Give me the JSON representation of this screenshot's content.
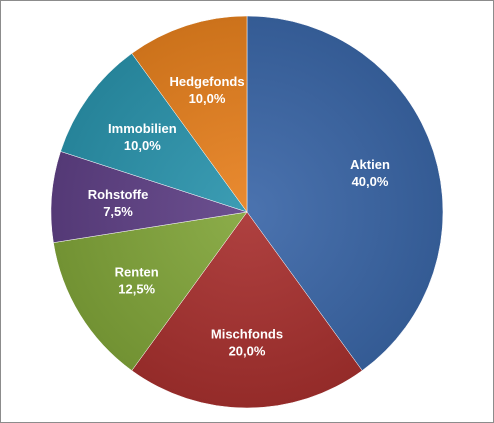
{
  "chart_data": {
    "type": "pie",
    "title": "",
    "start_angle_deg": 0,
    "direction": "clockwise",
    "slices": [
      {
        "label": "Aktien",
        "value": 40.0,
        "value_label": "40,0%",
        "color": "#3b67a8"
      },
      {
        "label": "Mischfonds",
        "value": 20.0,
        "value_label": "20,0%",
        "color": "#a8312f"
      },
      {
        "label": "Renten",
        "value": 12.5,
        "value_label": "12,5%",
        "color": "#82a63a"
      },
      {
        "label": "Rohstoffe",
        "value": 7.5,
        "value_label": "7,5%",
        "color": "#5f4186"
      },
      {
        "label": "Immobilien",
        "value": 10.0,
        "value_label": "10,0%",
        "color": "#2b95ae"
      },
      {
        "label": "Hedgefonds",
        "value": 10.0,
        "value_label": "10,0%",
        "color": "#e8811f"
      }
    ]
  }
}
